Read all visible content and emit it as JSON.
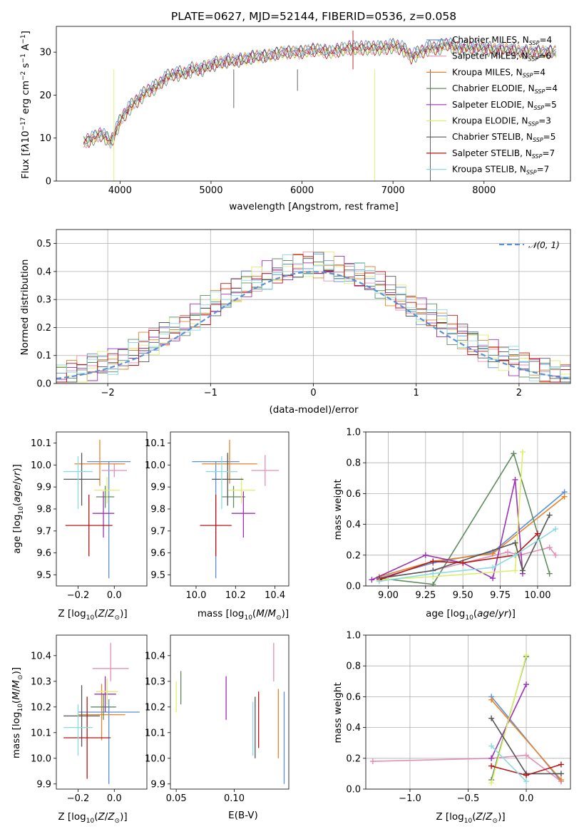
{
  "figure_title": "PLATE=0627, MJD=52144, FIBERID=0536, z=0.058",
  "series": [
    {
      "name": "Chabrier MILES, N_SSP=4",
      "color": "#5b8fd8"
    },
    {
      "name": "Salpeter MILES, N_SSP=6",
      "color": "#e58fb5"
    },
    {
      "name": "Kroupa MILES, N_SSP=4",
      "color": "#e8832a"
    },
    {
      "name": "Chabrier ELODIE, N_SSP=4",
      "color": "#5d8c5f"
    },
    {
      "name": "Salpeter ELODIE, N_SSP=5",
      "color": "#9b30b5"
    },
    {
      "name": "Kroupa ELODIE, N_SSP=3",
      "color": "#dcef6a"
    },
    {
      "name": "Chabrier STELIB, N_SSP=5",
      "color": "#555555"
    },
    {
      "name": "Salpeter STELIB, N_SSP=7",
      "color": "#b81414"
    },
    {
      "name": "Kroupa STELIB, N_SSP=7",
      "color": "#8adbe0"
    }
  ],
  "chart_data": [
    {
      "id": "spectrum",
      "type": "line",
      "xlabel": "wavelength [Angstrom, rest frame]",
      "ylabel": "Flux [f_λ 10^-17 erg cm^-2 s^-1 A^-1]",
      "xlim": [
        3300,
        8950
      ],
      "ylim": [
        0,
        36
      ],
      "xticks": [
        4000,
        5000,
        6000,
        7000,
        8000
      ],
      "yticks": [
        0,
        10,
        20,
        30
      ],
      "grid": false,
      "legend": "right",
      "x": [
        3600,
        3700,
        3800,
        3900,
        4000,
        4100,
        4200,
        4300,
        4400,
        4500,
        4600,
        4700,
        4800,
        4900,
        5000,
        5100,
        5200,
        5300,
        5400,
        5500,
        5600,
        5700,
        5800,
        5900,
        6000,
        6100,
        6200,
        6300,
        6400,
        6500,
        6600,
        6700,
        6800,
        6900,
        7000,
        7100,
        7200,
        7300,
        7400,
        7500,
        7600,
        7700,
        7800,
        7900,
        8000,
        8100,
        8200,
        8300,
        8400,
        8500,
        8600,
        8700,
        8800
      ],
      "y": [
        9,
        10,
        11,
        9,
        14,
        17,
        19,
        21,
        22,
        24,
        25,
        25,
        26,
        26,
        27,
        27.5,
        28,
        28,
        28.5,
        29,
        29,
        29.5,
        30,
        30,
        30,
        30.5,
        30.5,
        30,
        30.5,
        31,
        31,
        31,
        31,
        31,
        31.5,
        31,
        29,
        30,
        31,
        31,
        32,
        31,
        31,
        31,
        31,
        30.5,
        30.5,
        30.5,
        30,
        30,
        30,
        30,
        30
      ]
    },
    {
      "id": "residuals",
      "type": "histogram",
      "xlabel": "(data-model)/error",
      "ylabel": "Normed distribution",
      "xlim": [
        -2.5,
        2.5
      ],
      "ylim": [
        0,
        0.55
      ],
      "xticks": [
        -2,
        -1,
        0,
        1,
        2
      ],
      "yticks": [
        0.0,
        0.1,
        0.2,
        0.3,
        0.4,
        0.5
      ],
      "grid": true,
      "reference_label": "N(0,1)",
      "reference_color": "#5b8fd8",
      "bin_width": 0.1
    },
    {
      "id": "age_vs_Z",
      "type": "errorbar",
      "xlabel": "Z [log10(Z/Z⊙)]",
      "ylabel": "age [log10(age/yr)]",
      "xlim": [
        -0.32,
        0.18
      ],
      "ylim": [
        9.45,
        10.15
      ],
      "xticks": [
        -0.2,
        0.0
      ],
      "yticks": [
        9.5,
        9.6,
        9.7,
        9.8,
        9.9,
        10.0,
        10.1
      ],
      "points": [
        {
          "x": -0.03,
          "y": 10.015,
          "xerr": [
            0.12,
            0.12
          ],
          "yerr": [
            0.53,
            0.0
          ],
          "c": 0
        },
        {
          "x": 0.0,
          "y": 9.975,
          "xerr": [
            0.07,
            0.07
          ],
          "yerr": [
            0.03,
            0.03
          ],
          "c": 1
        },
        {
          "x": -0.08,
          "y": 10.005,
          "xerr": [
            0.14,
            0.14
          ],
          "yerr": [
            0.1,
            0.11
          ],
          "c": 2
        },
        {
          "x": -0.05,
          "y": 9.855,
          "xerr": [
            0.05,
            0.05
          ],
          "yerr": [
            0.05,
            0.05
          ],
          "c": 3
        },
        {
          "x": -0.06,
          "y": 9.78,
          "xerr": [
            0.06,
            0.06
          ],
          "yerr": [
            0.11,
            0.1
          ],
          "c": 4
        },
        {
          "x": -0.04,
          "y": 9.885,
          "xerr": [
            0.07,
            0.07
          ],
          "yerr": [
            0.06,
            0.06
          ],
          "c": 5
        },
        {
          "x": -0.18,
          "y": 9.935,
          "xerr": [
            0.1,
            0.1
          ],
          "yerr": [
            0.12,
            0.12
          ],
          "c": 6
        },
        {
          "x": -0.14,
          "y": 9.725,
          "xerr": [
            0.13,
            0.13
          ],
          "yerr": [
            0.14,
            0.14
          ],
          "c": 7
        },
        {
          "x": -0.2,
          "y": 9.97,
          "xerr": [
            0.08,
            0.08
          ],
          "yerr": [
            0.17,
            0.07
          ],
          "c": 8
        }
      ]
    },
    {
      "id": "age_vs_mass",
      "type": "errorbar",
      "xlabel": "mass [log10(M/M⊙)]",
      "ylabel": "",
      "xlim": [
        9.87,
        10.47
      ],
      "ylim": [
        9.45,
        10.15
      ],
      "xticks": [
        10.0,
        10.2,
        10.4
      ],
      "yticks": [
        9.5,
        9.6,
        9.7,
        9.8,
        9.9,
        10.0,
        10.1
      ],
      "points": [
        {
          "x": 10.1,
          "y": 10.015,
          "xerr": [
            0.12,
            0.12
          ],
          "yerr": [
            0.53,
            0.0
          ],
          "c": 0
        },
        {
          "x": 10.35,
          "y": 9.975,
          "xerr": [
            0.07,
            0.07
          ],
          "yerr": [
            0.07,
            0.07
          ],
          "c": 1
        },
        {
          "x": 10.17,
          "y": 10.005,
          "xerr": [
            0.14,
            0.14
          ],
          "yerr": [
            0.09,
            0.11
          ],
          "c": 2
        },
        {
          "x": 10.19,
          "y": 9.855,
          "xerr": [
            0.06,
            0.06
          ],
          "yerr": [
            0.05,
            0.05
          ],
          "c": 3
        },
        {
          "x": 10.24,
          "y": 9.78,
          "xerr": [
            0.06,
            0.06
          ],
          "yerr": [
            0.11,
            0.1
          ],
          "c": 4
        },
        {
          "x": 10.23,
          "y": 9.885,
          "xerr": [
            0.07,
            0.07
          ],
          "yerr": [
            0.06,
            0.06
          ],
          "c": 5
        },
        {
          "x": 10.16,
          "y": 9.935,
          "xerr": [
            0.08,
            0.08
          ],
          "yerr": [
            0.12,
            0.12
          ],
          "c": 6
        },
        {
          "x": 10.1,
          "y": 9.725,
          "xerr": [
            0.08,
            0.08
          ],
          "yerr": [
            0.14,
            0.14
          ],
          "c": 7
        },
        {
          "x": 10.13,
          "y": 9.97,
          "xerr": [
            0.08,
            0.08
          ],
          "yerr": [
            0.17,
            0.07
          ],
          "c": 8
        }
      ]
    },
    {
      "id": "massweight_vs_age",
      "type": "line",
      "xlabel": "age [log10(age/yr)]",
      "ylabel": "mass weight",
      "xlim": [
        8.85,
        10.22
      ],
      "ylim": [
        0,
        1.0
      ],
      "xticks": [
        9.0,
        9.25,
        9.5,
        9.75,
        10.0
      ],
      "xtick_labels": [
        "9.00",
        "9.25",
        "9.50",
        "9.75",
        "10.00"
      ],
      "yticks": [
        0.0,
        0.2,
        0.4,
        0.6,
        0.8,
        1.0
      ],
      "grid": true,
      "lines": [
        {
          "c": 0,
          "x": [
            8.94,
            9.3,
            9.7,
            10.18
          ],
          "y": [
            0.05,
            0.15,
            0.22,
            0.61
          ]
        },
        {
          "c": 1,
          "x": [
            8.94,
            9.3,
            9.8,
            9.88,
            10.08,
            10.12
          ],
          "y": [
            0.05,
            0.1,
            0.22,
            0.2,
            0.25,
            0.2
          ]
        },
        {
          "c": 2,
          "x": [
            8.94,
            9.3,
            9.7,
            10.18
          ],
          "y": [
            0.06,
            0.16,
            0.21,
            0.58
          ]
        },
        {
          "c": 3,
          "x": [
            8.94,
            9.3,
            9.84,
            10.08
          ],
          "y": [
            0.05,
            0.01,
            0.86,
            0.08
          ]
        },
        {
          "c": 4,
          "x": [
            8.89,
            9.25,
            9.5,
            9.7,
            9.85,
            9.9
          ],
          "y": [
            0.04,
            0.2,
            0.15,
            0.05,
            0.69,
            0.08
          ]
        },
        {
          "c": 5,
          "x": [
            8.94,
            9.3,
            9.85,
            9.9
          ],
          "y": [
            0.04,
            0.06,
            0.1,
            0.87
          ]
        },
        {
          "c": 6,
          "x": [
            8.94,
            9.3,
            9.85,
            9.9,
            10.08
          ],
          "y": [
            0.05,
            0.1,
            0.28,
            0.1,
            0.46
          ]
        },
        {
          "c": 7,
          "x": [
            8.94,
            9.3,
            9.5,
            9.85,
            10.0
          ],
          "y": [
            0.04,
            0.16,
            0.15,
            0.2,
            0.34
          ]
        },
        {
          "c": 8,
          "x": [
            8.94,
            9.3,
            9.7,
            9.85,
            10.12
          ],
          "y": [
            0.03,
            0.08,
            0.12,
            0.2,
            0.37
          ]
        }
      ]
    },
    {
      "id": "mass_vs_Z",
      "type": "errorbar",
      "xlabel": "Z [log10(Z/Z⊙)]",
      "ylabel": "mass [log10(M/M⊙)]",
      "xlim": [
        -0.32,
        0.18
      ],
      "ylim": [
        9.88,
        10.48
      ],
      "xticks": [
        -0.2,
        0.0
      ],
      "yticks": [
        9.9,
        10.0,
        10.1,
        10.2,
        10.3,
        10.4
      ],
      "points": [
        {
          "x": -0.03,
          "y": 10.18,
          "xerr": [
            0.17,
            0.17
          ],
          "yerr": [
            0.28,
            0.05
          ],
          "c": 0
        },
        {
          "x": -0.02,
          "y": 10.35,
          "xerr": [
            0.1,
            0.1
          ],
          "yerr": [
            0.05,
            0.1
          ],
          "c": 1
        },
        {
          "x": -0.07,
          "y": 10.17,
          "xerr": [
            0.13,
            0.13
          ],
          "yerr": [
            0.1,
            0.12
          ],
          "c": 2
        },
        {
          "x": -0.06,
          "y": 10.2,
          "xerr": [
            0.07,
            0.07
          ],
          "yerr": [
            0.05,
            0.05
          ],
          "c": 3
        },
        {
          "x": -0.05,
          "y": 10.25,
          "xerr": [
            0.06,
            0.06
          ],
          "yerr": [
            0.07,
            0.07
          ],
          "c": 4
        },
        {
          "x": -0.04,
          "y": 10.26,
          "xerr": [
            0.06,
            0.06
          ],
          "yerr": [
            0.05,
            0.05
          ],
          "c": 5
        },
        {
          "x": -0.18,
          "y": 10.165,
          "xerr": [
            0.1,
            0.1
          ],
          "yerr": [
            0.12,
            0.12
          ],
          "c": 6
        },
        {
          "x": -0.15,
          "y": 10.08,
          "xerr": [
            0.13,
            0.13
          ],
          "yerr": [
            0.16,
            0.16
          ],
          "c": 7
        },
        {
          "x": -0.2,
          "y": 10.12,
          "xerr": [
            0.08,
            0.08
          ],
          "yerr": [
            0.11,
            0.09
          ],
          "c": 8
        }
      ]
    },
    {
      "id": "mass_vs_ebv",
      "type": "errorbar",
      "xlabel": "E(B-V)",
      "ylabel": "",
      "xlim": [
        0.045,
        0.147
      ],
      "ylim": [
        9.88,
        10.48
      ],
      "xticks": [
        0.05,
        0.1
      ],
      "xtick_labels": [
        "0.05",
        "0.10"
      ],
      "yticks": [
        9.9,
        10.0,
        10.1,
        10.2,
        10.3,
        10.4
      ],
      "points": [
        {
          "x": 0.143,
          "y": 10.18,
          "xerr": [
            0,
            0
          ],
          "yerr": [
            0.28,
            0.08
          ],
          "c": 0
        },
        {
          "x": 0.134,
          "y": 10.35,
          "xerr": [
            0,
            0
          ],
          "yerr": [
            0.05,
            0.1
          ],
          "c": 1
        },
        {
          "x": 0.138,
          "y": 10.17,
          "xerr": [
            0,
            0
          ],
          "yerr": [
            0.17,
            0.1
          ],
          "c": 2
        },
        {
          "x": 0.054,
          "y": 10.26,
          "xerr": [
            0,
            0
          ],
          "yerr": [
            0.05,
            0.08
          ],
          "c": 3
        },
        {
          "x": 0.093,
          "y": 10.23,
          "xerr": [
            0,
            0
          ],
          "yerr": [
            0.08,
            0.09
          ],
          "c": 4
        },
        {
          "x": 0.05,
          "y": 10.24,
          "xerr": [
            0,
            0
          ],
          "yerr": [
            0.06,
            0.06
          ],
          "c": 5
        },
        {
          "x": 0.118,
          "y": 10.12,
          "xerr": [
            0,
            0
          ],
          "yerr": [
            0.12,
            0.12
          ],
          "c": 6
        },
        {
          "x": 0.121,
          "y": 10.15,
          "xerr": [
            0,
            0
          ],
          "yerr": [
            0.11,
            0.11
          ],
          "c": 7
        },
        {
          "x": 0.116,
          "y": 10.13,
          "xerr": [
            0,
            0
          ],
          "yerr": [
            0.12,
            0.09
          ],
          "c": 8
        }
      ]
    },
    {
      "id": "massweight_vs_Z",
      "type": "line",
      "xlabel": "Z [log10(Z/Z⊙)]",
      "ylabel": "mass weight",
      "xlim": [
        -1.38,
        0.38
      ],
      "ylim": [
        0,
        1.0
      ],
      "xticks": [
        -1.0,
        -0.5,
        0.0
      ],
      "xtick_labels": [
        "−1.0",
        "−0.5",
        "0.0"
      ],
      "yticks": [
        0.0,
        0.2,
        0.4,
        0.6,
        0.8,
        1.0
      ],
      "grid": true,
      "lines": [
        {
          "c": 0,
          "x": [
            -0.3,
            0.3
          ],
          "y": [
            0.6,
            0.05
          ]
        },
        {
          "c": 1,
          "x": [
            -1.32,
            -0.3,
            0.0,
            0.3
          ],
          "y": [
            0.18,
            0.2,
            0.22,
            0.05
          ]
        },
        {
          "c": 2,
          "x": [
            -0.3,
            0.3
          ],
          "y": [
            0.58,
            0.06
          ]
        },
        {
          "c": 3,
          "x": [
            -0.3,
            0.0
          ],
          "y": [
            0.06,
            0.86
          ]
        },
        {
          "c": 4,
          "x": [
            -0.3,
            0.0
          ],
          "y": [
            0.2,
            0.68
          ]
        },
        {
          "c": 5,
          "x": [
            -0.3,
            0.0
          ],
          "y": [
            0.04,
            0.87
          ]
        },
        {
          "c": 6,
          "x": [
            -0.3,
            0.0,
            0.3
          ],
          "y": [
            0.46,
            0.1,
            0.1
          ]
        },
        {
          "c": 7,
          "x": [
            -0.3,
            0.0,
            0.3
          ],
          "y": [
            0.15,
            0.09,
            0.16
          ]
        },
        {
          "c": 8,
          "x": [
            -0.3,
            0.0
          ],
          "y": [
            0.28,
            0.05
          ]
        }
      ]
    }
  ]
}
